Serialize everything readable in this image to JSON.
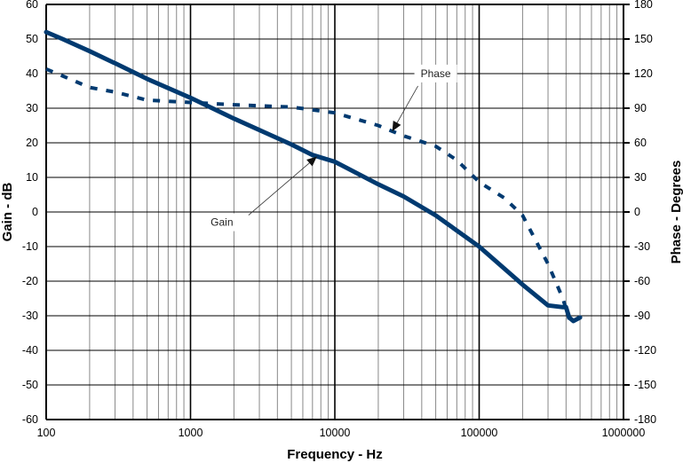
{
  "chart_data": {
    "type": "line",
    "title": "",
    "xlabel": "Frequency - Hz",
    "ylabel": "Gain - dB",
    "y2label": "Phase - Degrees",
    "xscale": "log",
    "xlim": [
      100,
      1000000
    ],
    "ylim": [
      -60,
      60
    ],
    "y2lim": [
      -180,
      180
    ],
    "grid": true,
    "x_ticks": [
      "100",
      "1000",
      "10000",
      "100000",
      "1000000"
    ],
    "y_ticks": [
      "60",
      "50",
      "40",
      "30",
      "20",
      "10",
      "0",
      "-10",
      "-20",
      "-30",
      "-40",
      "-50",
      "-60"
    ],
    "y2_ticks": [
      "180",
      "150",
      "120",
      "90",
      "60",
      "30",
      "0",
      "-30",
      "-60",
      "-90",
      "-120",
      "-150",
      "-180"
    ],
    "series": [
      {
        "name": "Gain",
        "axis": "left",
        "style": "solid",
        "color": "#003a70",
        "x": [
          100,
          130,
          200,
          300,
          500,
          1000,
          2000,
          5000,
          7000,
          10000,
          20000,
          30000,
          50000,
          100000,
          200000,
          300000,
          380000,
          400000,
          420000,
          450000,
          500000
        ],
        "y": [
          52,
          50,
          46.5,
          43,
          38.5,
          33,
          27,
          19.5,
          16.5,
          14.5,
          8,
          4.5,
          -1,
          -10,
          -21,
          -27,
          -27.5,
          -27.5,
          -30.5,
          -31.5,
          -30.5
        ]
      },
      {
        "name": "Phase",
        "axis": "right",
        "style": "dashed",
        "color": "#003a70",
        "x": [
          100,
          130,
          200,
          300,
          500,
          1000,
          2000,
          5000,
          10000,
          20000,
          25000,
          30000,
          50000,
          70000,
          100000,
          150000,
          200000,
          300000,
          380000,
          420000
        ],
        "y": [
          124,
          118,
          108,
          104,
          97,
          95,
          93,
          91,
          86,
          75,
          70,
          66,
          57,
          45,
          26,
          12,
          -3,
          -45,
          -75,
          -93
        ]
      }
    ],
    "annotations": [
      {
        "text": "Gain",
        "target_x": 7500,
        "target_y": 16
      },
      {
        "text": "Phase",
        "target_x": 25000,
        "target_y": 70
      }
    ]
  }
}
